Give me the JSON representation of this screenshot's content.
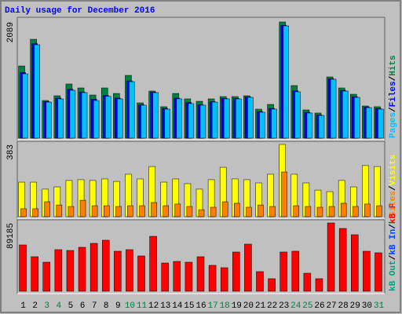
{
  "title": "Daily usage for December 2016",
  "legend_separator": "/",
  "chart_data": [
    {
      "type": "bar",
      "ylim": [
        0,
        2089
      ],
      "yticks": [
        2089
      ],
      "series": [
        {
          "name": "Hits",
          "color": "#008040",
          "values": [
            1298,
            1778,
            677,
            762,
            974,
            903,
            776,
            903,
            804,
            1129,
            635,
            847,
            565,
            804,
            706,
            663,
            706,
            748,
            748,
            762,
            522,
            607,
            2089,
            946,
            508,
            452,
            1101,
            903,
            790,
            579,
            565
          ]
        },
        {
          "name": "Files",
          "color": "#0000ff",
          "values": [
            1180,
            1700,
            660,
            720,
            880,
            830,
            700,
            770,
            720,
            1030,
            600,
            830,
            535,
            720,
            640,
            600,
            660,
            715,
            715,
            740,
            480,
            535,
            2030,
            850,
            465,
            420,
            1070,
            860,
            745,
            560,
            535
          ]
        },
        {
          "name": "Pages",
          "color": "#00c0ff",
          "values": [
            1157,
            1680,
            649,
            706,
            861,
            819,
            677,
            750,
            706,
            1016,
            593,
            819,
            522,
            706,
            621,
            593,
            649,
            706,
            706,
            734,
            466,
            522,
            2018,
            833,
            452,
            409,
            1059,
            847,
            734,
            550,
            522
          ]
        }
      ]
    },
    {
      "type": "bar",
      "ylim": [
        0,
        383
      ],
      "yticks": [
        383
      ],
      "series": [
        {
          "name": "Visits",
          "color": "#ffff00",
          "values": [
            183,
            183,
            146,
            158,
            192,
            196,
            192,
            200,
            187,
            225,
            200,
            266,
            183,
            200,
            175,
            146,
            196,
            262,
            200,
            196,
            179,
            225,
            383,
            225,
            179,
            141,
            133,
            192,
            158,
            271,
            266
          ]
        },
        {
          "name": "Sites",
          "color": "#ff8000",
          "values": [
            42,
            42,
            79,
            62,
            54,
            87,
            58,
            58,
            54,
            58,
            58,
            75,
            58,
            67,
            54,
            37,
            50,
            79,
            71,
            50,
            62,
            54,
            237,
            58,
            54,
            50,
            54,
            71,
            54,
            67,
            58
          ]
        }
      ]
    },
    {
      "type": "bar",
      "ylim": [
        0,
        89185
      ],
      "yticks": [
        89185
      ],
      "categories": [
        "1",
        "2",
        "3",
        "4",
        "5",
        "6",
        "7",
        "8",
        "9",
        "10",
        "11",
        "12",
        "13",
        "14",
        "15",
        "16",
        "17",
        "18",
        "19",
        "20",
        "21",
        "22",
        "23",
        "24",
        "25",
        "26",
        "27",
        "28",
        "29",
        "30",
        "31"
      ],
      "category_colors": [
        "#000000",
        "#000000",
        "#008040",
        "#008040",
        "#000000",
        "#000000",
        "#000000",
        "#000000",
        "#000000",
        "#008040",
        "#008040",
        "#000000",
        "#000000",
        "#000000",
        "#000000",
        "#000000",
        "#008040",
        "#008040",
        "#000000",
        "#000000",
        "#000000",
        "#000000",
        "#000000",
        "#008040",
        "#008040",
        "#000000",
        "#000000",
        "#000000",
        "#000000",
        "#000000",
        "#008040"
      ],
      "series": [
        {
          "name": "kB F",
          "color": "#ff0000",
          "values": [
            60483,
            45105,
            37930,
            54331,
            53306,
            57406,
            62532,
            66633,
            52281,
            54331,
            46130,
            71758,
            36904,
            38954,
            37930,
            45105,
            33829,
            30754,
            51256,
            61507,
            25628,
            16402,
            51256,
            52281,
            23578,
            16402,
            89185,
            82009,
            73809,
            52281,
            50231
          ]
        },
        {
          "name": "kB In",
          "color": "#0040ff"
        },
        {
          "name": "kB Out",
          "color": "#00a080"
        }
      ]
    }
  ]
}
